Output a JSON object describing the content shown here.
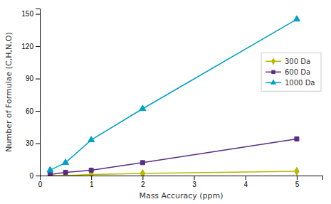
{
  "chart_data": {
    "type": "line",
    "xlabel": "Mass Accuracy (ppm)",
    "ylabel": "Number of Formulae (C,H,N,O)",
    "x": [
      0.2,
      0.5,
      1.0,
      2.0,
      5.0
    ],
    "series": [
      {
        "name": "300 Da",
        "color": "#b8b800",
        "marker": "diamond",
        "values": [
          0,
          0,
          1,
          2,
          4
        ]
      },
      {
        "name": "600 Da",
        "color": "#5a2d82",
        "marker": "square",
        "values": [
          1,
          3,
          5,
          12,
          34
        ]
      },
      {
        "name": "1000 Da",
        "color": "#00a0c8",
        "marker": "triangle",
        "values": [
          5,
          12,
          33,
          62,
          145
        ]
      }
    ],
    "xlim": [
      0,
      5.5
    ],
    "ylim": [
      0,
      155
    ],
    "xticks": [
      0,
      1,
      2,
      3,
      4,
      5
    ],
    "yticks": [
      0,
      30,
      60,
      90,
      120,
      150
    ],
    "grid": false,
    "legend": "right"
  }
}
